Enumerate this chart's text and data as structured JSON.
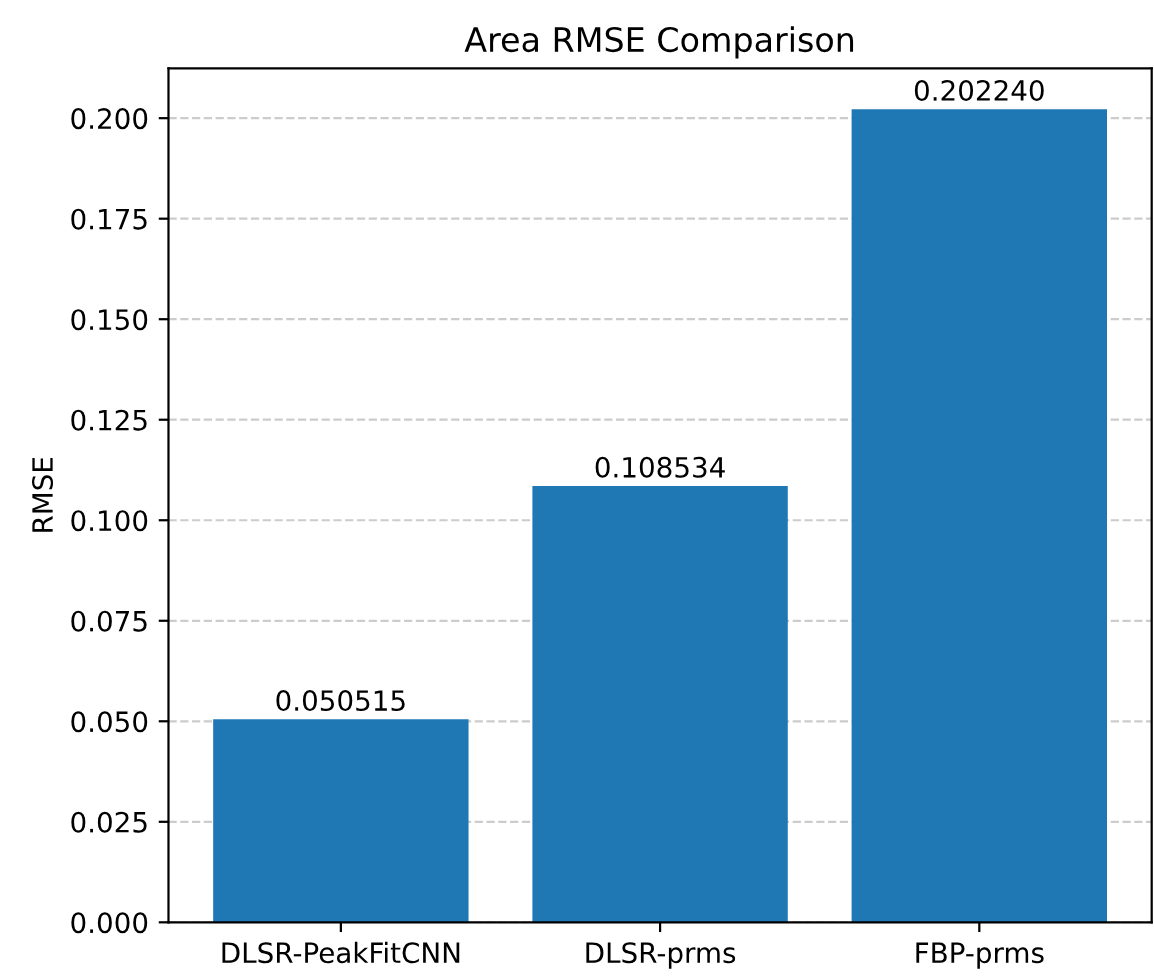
{
  "chart_data": {
    "type": "bar",
    "title": "Area RMSE Comparison",
    "ylabel": "RMSE",
    "categories": [
      "DLSR-PeakFitCNN",
      "DLSR-prms",
      "FBP-prms"
    ],
    "values": [
      0.050515,
      0.108534,
      0.20224
    ],
    "value_labels": [
      "0.050515",
      "0.108534",
      "0.202240"
    ],
    "color": "#1f77b4",
    "ylim": [
      0,
      0.2124
    ],
    "yticks": [
      {
        "value": 0,
        "label": "0.000"
      },
      {
        "value": 0.025,
        "label": "0.025"
      },
      {
        "value": 0.05,
        "label": "0.050"
      },
      {
        "value": 0.075,
        "label": "0.075"
      },
      {
        "value": 0.1,
        "label": "0.100"
      },
      {
        "value": 0.125,
        "label": "0.125"
      },
      {
        "value": 0.15,
        "label": "0.150"
      },
      {
        "value": 0.175,
        "label": "0.175"
      },
      {
        "value": 0.2,
        "label": "0.200"
      }
    ],
    "grid": "y"
  }
}
